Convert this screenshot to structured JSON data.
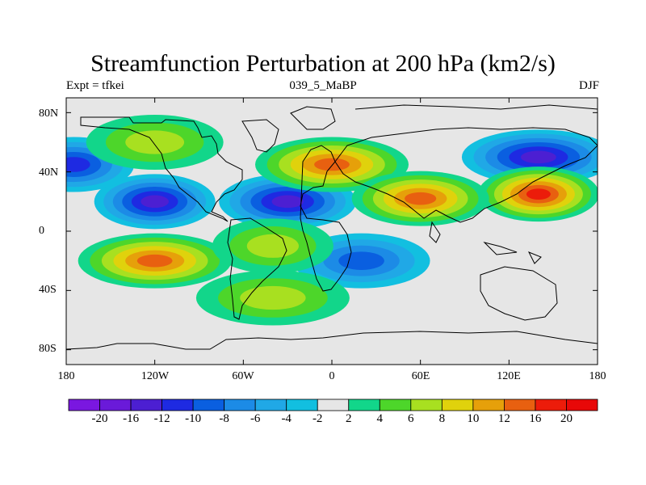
{
  "title": "Streamfunction Perturbation at 200 hPa (km2/s)",
  "left_label": "Expt = tfkei",
  "center_label": "039_5_MaBP",
  "right_label": "DJF",
  "lat_labels": [
    "80N",
    "40N",
    "0",
    "40S",
    "80S"
  ],
  "lon_labels": [
    "180",
    "120W",
    "60W",
    "0",
    "60E",
    "120E",
    "180"
  ],
  "colorbar": {
    "labels": [
      "-20",
      "-16",
      "-12",
      "-10",
      "-8",
      "-6",
      "-4",
      "-2",
      "2",
      "4",
      "6",
      "8",
      "10",
      "12",
      "16",
      "20"
    ],
    "colors": [
      "#7a17e0",
      "#6a1ad9",
      "#4c1fd2",
      "#1e2ae2",
      "#0a5fe0",
      "#1c8be6",
      "#20a8e6",
      "#12bfe0",
      "#e6e6e6",
      "#12d68a",
      "#4dd62a",
      "#a8e020",
      "#e0d20c",
      "#e6a00a",
      "#e86010",
      "#ec1c0a",
      "#e80808"
    ]
  },
  "chart_data": {
    "type": "heatmap",
    "title": "Streamfunction Perturbation at 200 hPa (km2/s)",
    "xlabel": "",
    "ylabel": "",
    "xlim": [
      -180,
      180
    ],
    "ylim": [
      -90,
      90
    ],
    "x_ticks": [
      "180",
      "120W",
      "60W",
      "0",
      "60E",
      "120E",
      "180"
    ],
    "y_ticks": [
      "80N",
      "40N",
      "0",
      "40S",
      "80S"
    ],
    "levels": [
      -20,
      -16,
      -12,
      -10,
      -8,
      -6,
      -4,
      -2,
      2,
      4,
      6,
      8,
      10,
      12,
      16,
      20
    ],
    "features": [
      {
        "lon": -120,
        "lat": 20,
        "value": -14
      },
      {
        "lon": -30,
        "lat": 20,
        "value": -13
      },
      {
        "lon": 140,
        "lat": 50,
        "value": -13
      },
      {
        "lon": -175,
        "lat": 45,
        "value": -10
      },
      {
        "lon": 20,
        "lat": -20,
        "value": -9
      },
      {
        "lon": 0,
        "lat": 45,
        "value": 14
      },
      {
        "lon": 140,
        "lat": 25,
        "value": 18
      },
      {
        "lon": 60,
        "lat": 22,
        "value": 14
      },
      {
        "lon": -120,
        "lat": -20,
        "value": 15
      },
      {
        "lon": -40,
        "lat": -10,
        "value": 7
      },
      {
        "lon": -120,
        "lat": 60,
        "value": 7
      },
      {
        "lon": -40,
        "lat": -45,
        "value": 7
      }
    ]
  }
}
